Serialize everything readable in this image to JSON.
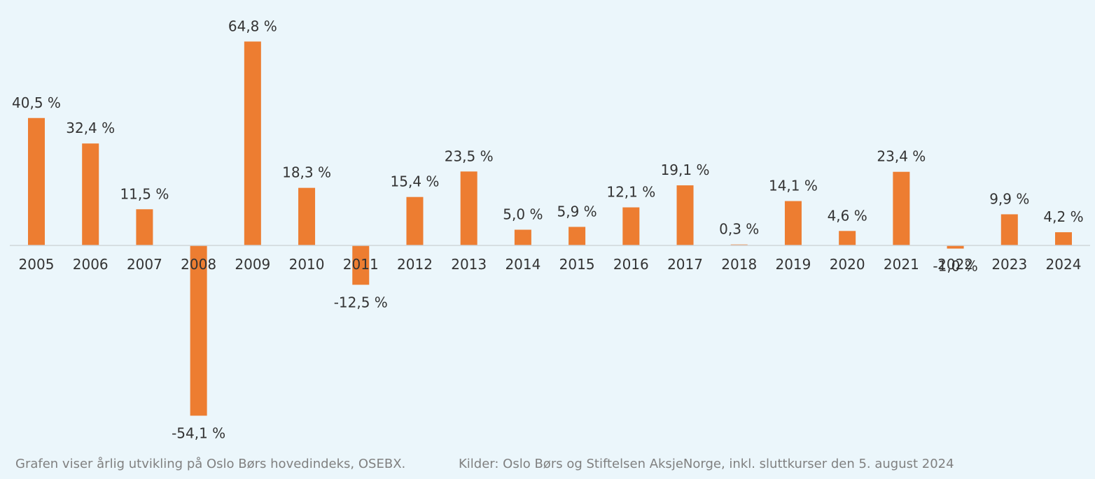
{
  "chart_data": {
    "type": "bar",
    "title": "",
    "xlabel": "",
    "ylabel": "",
    "categories": [
      "2005",
      "2006",
      "2007",
      "2008",
      "2009",
      "2010",
      "2011",
      "2012",
      "2013",
      "2014",
      "2015",
      "2016",
      "2017",
      "2018",
      "2019",
      "2020",
      "2021",
      "2022",
      "2023",
      "2024"
    ],
    "values": [
      40.5,
      32.4,
      11.5,
      -54.1,
      64.8,
      18.3,
      -12.5,
      15.4,
      23.5,
      5.0,
      5.9,
      12.1,
      19.1,
      0.3,
      14.1,
      4.6,
      23.4,
      -1.0,
      9.9,
      4.2
    ],
    "value_labels": [
      "40,5 %",
      "32,4 %",
      "11,5 %",
      "-54,1 %",
      "64,8 %",
      "18,3 %",
      "-12,5 %",
      "15,4 %",
      "23,5 %",
      "5,0 %",
      "5,9 %",
      "12,1 %",
      "19,1 %",
      "0,3 %",
      "14,1 %",
      "4,6 %",
      "23,4 %",
      "-1,0 %",
      "9,9 %",
      "4,2 %"
    ],
    "ylim": [
      -54.1,
      64.8
    ],
    "grid": false,
    "legend": "none",
    "bar_color": "#ed7d31",
    "axis_color": "#d0d6d9",
    "text_color": "#333333"
  },
  "footer": {
    "description": "Grafen viser årlig utvikling på Oslo Børs hovedindeks, OSEBX.",
    "sources": "Kilder: Oslo Børs og Stiftelsen AksjeNorge, inkl. sluttkurser den 5. august 2024"
  }
}
